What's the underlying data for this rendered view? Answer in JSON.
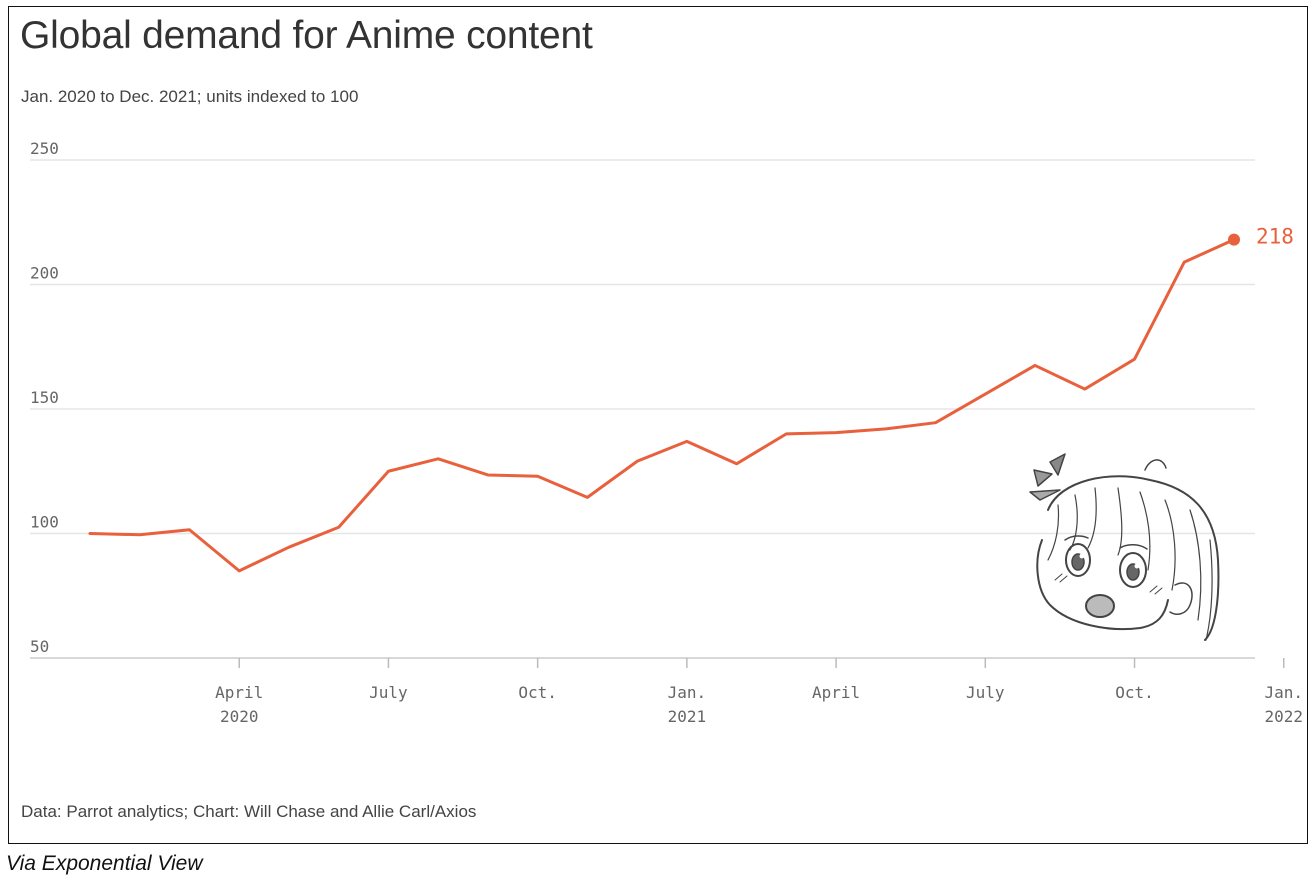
{
  "title": "Global demand for Anime content",
  "subtitle": "Jan. 2020 to Dec. 2021; units indexed to 100",
  "source": "Data: Parrot analytics; Chart: Will Chase and Allie Carl/Axios",
  "credit": "Via Exponential View",
  "colors": {
    "line": "#e8603c",
    "grid": "#e6e6e6",
    "axis_text": "#666666"
  },
  "illustration": "anime-girl-surprised-sketch",
  "chart_data": {
    "type": "line",
    "title": "Global demand for Anime content",
    "subtitle": "Jan. 2020 to Dec. 2021; units indexed to 100",
    "x": [
      "2020-01",
      "2020-02",
      "2020-03",
      "2020-04",
      "2020-05",
      "2020-06",
      "2020-07",
      "2020-08",
      "2020-09",
      "2020-10",
      "2020-11",
      "2020-12",
      "2021-01",
      "2021-02",
      "2021-03",
      "2021-04",
      "2021-05",
      "2021-06",
      "2021-07",
      "2021-08",
      "2021-09",
      "2021-10",
      "2021-11",
      "2021-12"
    ],
    "series": [
      {
        "values": [
          100,
          99.5,
          101.5,
          85,
          94.5,
          102.5,
          125,
          130,
          123.5,
          123,
          114.5,
          129,
          137,
          128,
          140,
          140.5,
          142,
          144.5,
          156,
          167.5,
          158,
          170,
          209,
          218
        ]
      }
    ],
    "ylim": [
      50,
      250
    ],
    "yticks": [
      50,
      100,
      150,
      200,
      250
    ],
    "xticks": [
      {
        "x": "2020-04",
        "label": "April",
        "sub": "2020"
      },
      {
        "x": "2020-07",
        "label": "July",
        "sub": ""
      },
      {
        "x": "2020-10",
        "label": "Oct.",
        "sub": ""
      },
      {
        "x": "2021-01",
        "label": "Jan.",
        "sub": "2021"
      },
      {
        "x": "2021-04",
        "label": "April",
        "sub": ""
      },
      {
        "x": "2021-07",
        "label": "July",
        "sub": ""
      },
      {
        "x": "2021-10",
        "label": "Oct.",
        "sub": ""
      },
      {
        "x": "2022-01",
        "label": "Jan.",
        "sub": "2022"
      }
    ],
    "end_label": "218",
    "grid": true,
    "xlabel": "",
    "ylabel": ""
  }
}
